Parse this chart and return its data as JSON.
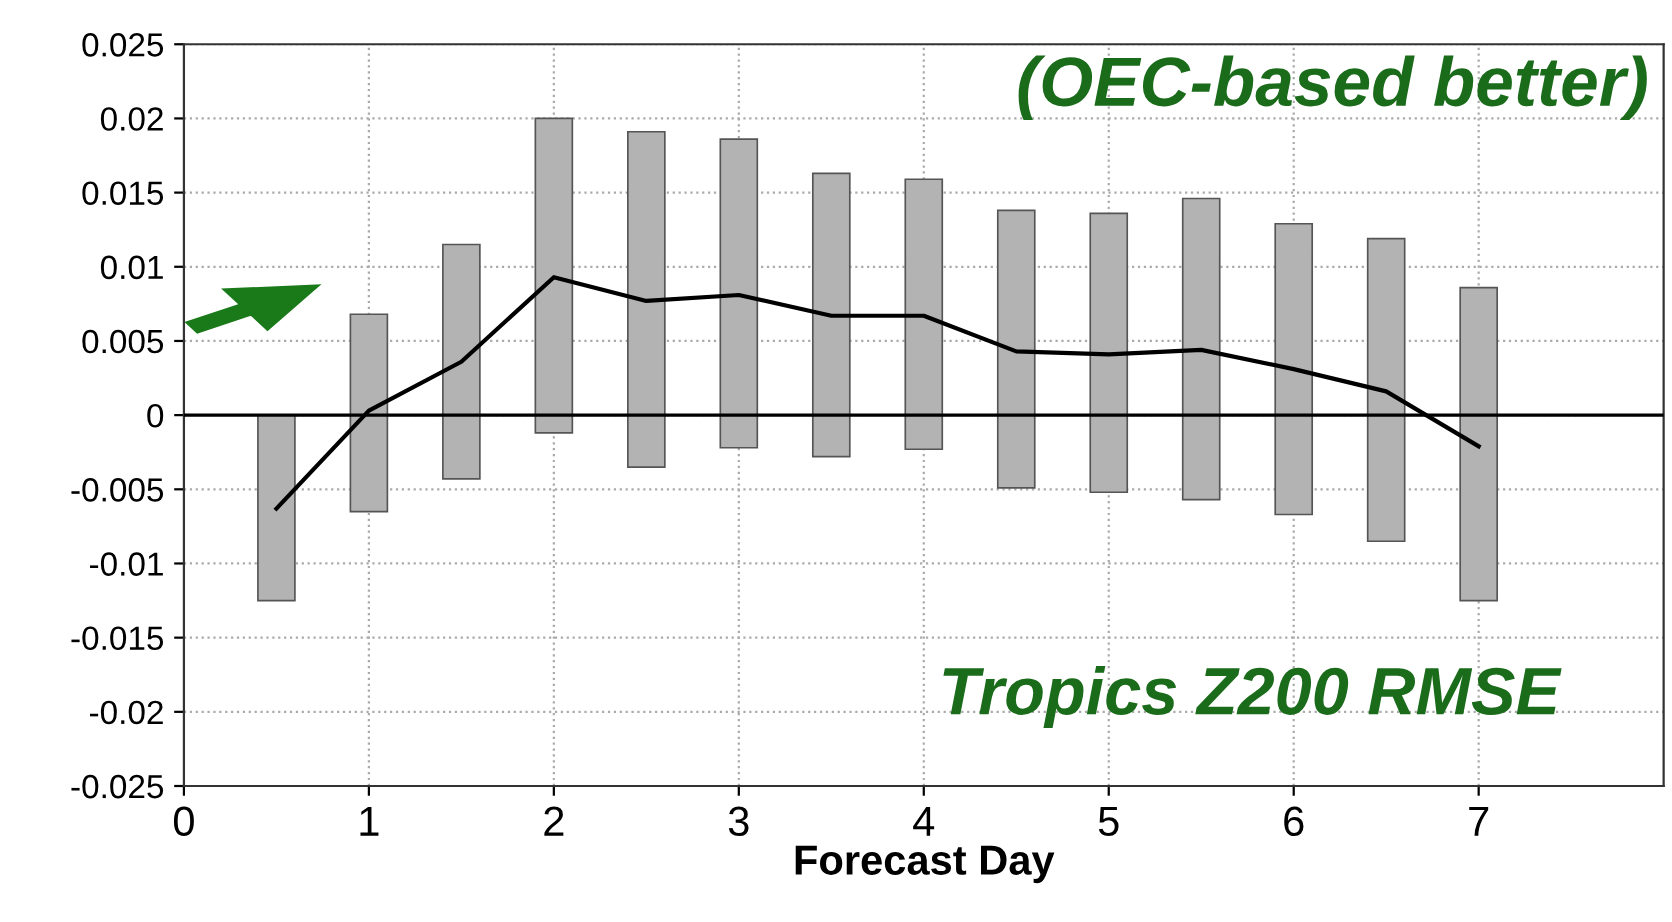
{
  "chart_data": {
    "type": "bar",
    "xlabel": "Forecast Day",
    "annotations": [
      "(OEC-based better)",
      "Tropics Z200 RMSE"
    ],
    "series": [
      {
        "color": "#b3b3b3",
        "x": [
          0.5,
          1,
          1.5,
          2,
          2.5,
          3,
          3.5,
          4,
          4.5,
          5,
          5.5,
          6,
          6.5,
          7
        ],
        "base": [
          -0.0125,
          -0.0065,
          -0.0043,
          -0.0012,
          -0.0035,
          -0.0022,
          -0.0028,
          -0.0023,
          -0.0049,
          -0.0052,
          -0.0057,
          -0.0067,
          -0.0085,
          -0.0125
        ],
        "values": [
          0.0125,
          0.0133,
          0.0158,
          0.0212,
          0.0226,
          0.0208,
          0.0191,
          0.0182,
          0.0187,
          0.0188,
          0.0203,
          0.0196,
          0.0204,
          0.0211
        ]
      },
      {
        "type": "line",
        "color": "#000000",
        "x": [
          0.5,
          1,
          1.5,
          2,
          2.5,
          3,
          3.5,
          4,
          4.5,
          5,
          5.5,
          6,
          6.5,
          7
        ],
        "values": [
          -0.0063,
          0.0003,
          0.0036,
          0.0093,
          0.0077,
          0.0081,
          0.0067,
          0.0067,
          0.0043,
          0.0041,
          0.0044,
          0.0031,
          0.0016,
          -0.0021
        ]
      }
    ],
    "ref_lines": [
      {
        "axis": "y",
        "value": 0,
        "color": "#000000"
      }
    ],
    "xlim": [
      0,
      8
    ],
    "xticks": [
      0,
      1,
      2,
      3,
      4,
      5,
      6,
      7
    ],
    "ylim": [
      -0.025,
      0.025
    ],
    "yticks": [
      -0.025,
      -0.02,
      -0.015,
      -0.01,
      -0.005,
      0,
      0.005,
      0.01,
      0.015,
      0.02,
      0.025
    ],
    "grid": true,
    "line_style": "solid",
    "marker": "none"
  }
}
